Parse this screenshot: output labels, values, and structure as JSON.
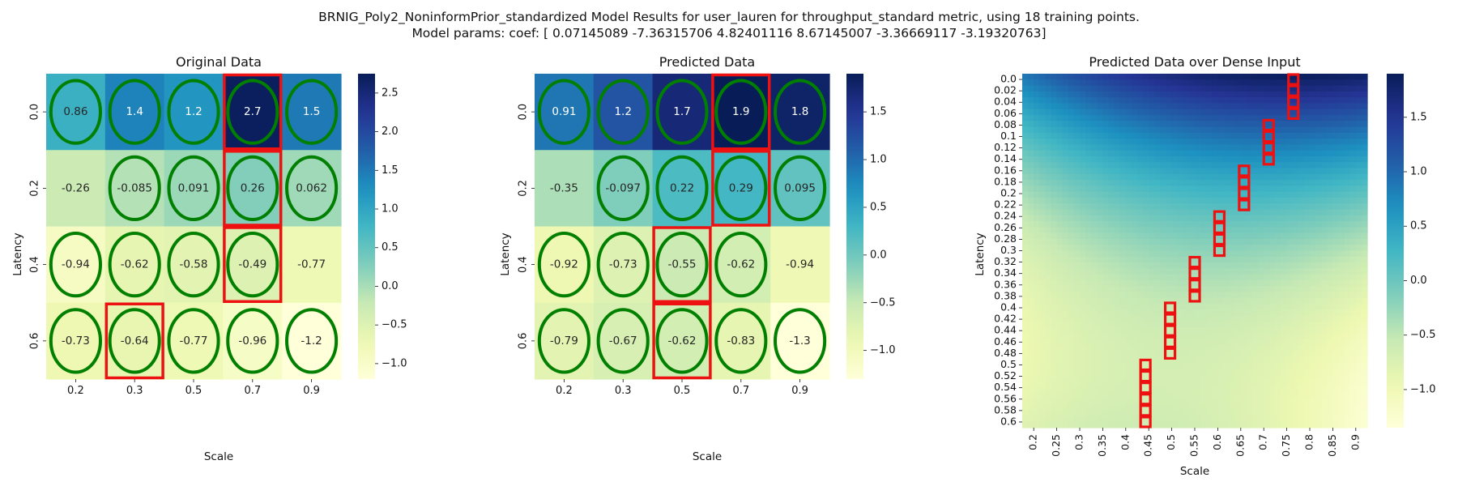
{
  "suptitle": {
    "line1": "BRNIG_Poly2_NoninformPrior_standardized Model Results for user_lauren for throughput_standard metric, using 18 training points.",
    "line2": "Model params: coef: [ 0.07145089 -7.36315706  4.82401116  8.67145007 -3.36669117 -3.19320763]"
  },
  "colors": {
    "colormap": "YlGnBu",
    "green_ellipse": "#007f00",
    "red_box": "#ee1111"
  },
  "chart_data": [
    {
      "type": "heatmap",
      "title": "Original Data",
      "xlabel": "Scale",
      "ylabel": "Latency",
      "x_labels": [
        "0.2",
        "0.3",
        "0.5",
        "0.7",
        "0.9"
      ],
      "y_labels": [
        "0.0",
        "0.2",
        "0.4",
        "0.6"
      ],
      "values": [
        [
          0.86,
          1.4,
          1.2,
          2.7,
          1.5
        ],
        [
          -0.26,
          -0.085,
          0.091,
          0.26,
          0.062
        ],
        [
          -0.94,
          -0.62,
          -0.58,
          -0.49,
          -0.77
        ],
        [
          -0.73,
          -0.64,
          -0.77,
          -0.96,
          -1.2
        ]
      ],
      "value_labels": [
        [
          "0.86",
          "1.4",
          "1.2",
          "2.7",
          "1.5"
        ],
        [
          "-0.26",
          "-0.085",
          "0.091",
          "0.26",
          "0.062"
        ],
        [
          "-0.94",
          "-0.62",
          "-0.58",
          "-0.49",
          "-0.77"
        ],
        [
          "-0.73",
          "-0.64",
          "-0.77",
          "-0.96",
          "-1.2"
        ]
      ],
      "vmin": -1.2,
      "vmax": 2.75,
      "colorbar_ticks": [
        -1.0,
        -0.5,
        0.0,
        0.5,
        1.0,
        1.5,
        2.0,
        2.5
      ],
      "colorbar_tick_labels": [
        "−1.0",
        "−0.5",
        "0.0",
        "0.5",
        "1.0",
        "1.5",
        "2.0",
        "2.5"
      ],
      "green_ellipses": [
        [
          0,
          0
        ],
        [
          0,
          1
        ],
        [
          0,
          2
        ],
        [
          0,
          3
        ],
        [
          0,
          4
        ],
        [
          1,
          1
        ],
        [
          1,
          2
        ],
        [
          1,
          3
        ],
        [
          1,
          4
        ],
        [
          2,
          0
        ],
        [
          2,
          1
        ],
        [
          2,
          2
        ],
        [
          2,
          3
        ],
        [
          3,
          0
        ],
        [
          3,
          1
        ],
        [
          3,
          2
        ],
        [
          3,
          3
        ],
        [
          3,
          4
        ]
      ],
      "red_boxes": [
        [
          0,
          3
        ],
        [
          1,
          3
        ],
        [
          2,
          3
        ],
        [
          3,
          1
        ]
      ]
    },
    {
      "type": "heatmap",
      "title": "Predicted Data",
      "xlabel": "Scale",
      "ylabel": "Latency",
      "x_labels": [
        "0.2",
        "0.3",
        "0.5",
        "0.7",
        "0.9"
      ],
      "y_labels": [
        "0.0",
        "0.2",
        "0.4",
        "0.6"
      ],
      "values": [
        [
          0.91,
          1.2,
          1.7,
          1.9,
          1.8
        ],
        [
          -0.35,
          -0.097,
          0.22,
          0.29,
          0.095
        ],
        [
          -0.92,
          -0.73,
          -0.55,
          -0.62,
          -0.94
        ],
        [
          -0.79,
          -0.67,
          -0.62,
          -0.83,
          -1.3
        ]
      ],
      "value_labels": [
        [
          "0.91",
          "1.2",
          "1.7",
          "1.9",
          "1.8"
        ],
        [
          "-0.35",
          "-0.097",
          "0.22",
          "0.29",
          "0.095"
        ],
        [
          "-0.92",
          "-0.73",
          "-0.55",
          "-0.62",
          "-0.94"
        ],
        [
          "-0.79",
          "-0.67",
          "-0.62",
          "-0.83",
          "-1.3"
        ]
      ],
      "vmin": -1.3,
      "vmax": 1.9,
      "colorbar_ticks": [
        -1.0,
        -0.5,
        0.0,
        0.5,
        1.0,
        1.5
      ],
      "colorbar_tick_labels": [
        "−1.0",
        "−0.5",
        "0.0",
        "0.5",
        "1.0",
        "1.5"
      ],
      "green_ellipses": [
        [
          0,
          0
        ],
        [
          0,
          1
        ],
        [
          0,
          2
        ],
        [
          0,
          3
        ],
        [
          0,
          4
        ],
        [
          1,
          1
        ],
        [
          1,
          2
        ],
        [
          1,
          3
        ],
        [
          1,
          4
        ],
        [
          2,
          0
        ],
        [
          2,
          1
        ],
        [
          2,
          2
        ],
        [
          2,
          3
        ],
        [
          3,
          0
        ],
        [
          3,
          1
        ],
        [
          3,
          2
        ],
        [
          3,
          3
        ],
        [
          3,
          4
        ]
      ],
      "red_boxes": [
        [
          0,
          3
        ],
        [
          1,
          3
        ],
        [
          2,
          2
        ],
        [
          3,
          2
        ]
      ]
    },
    {
      "type": "heatmap",
      "title": "Predicted Data over Dense Input",
      "xlabel": "Scale",
      "ylabel": "Latency",
      "x_labels": [
        "0.2",
        "0.25",
        "0.3",
        "0.35",
        "0.4",
        "0.45",
        "0.5",
        "0.55",
        "0.6",
        "0.65",
        "0.7",
        "0.75",
        "0.8",
        "0.85",
        "0.9"
      ],
      "y_labels": [
        "0.0",
        "0.02",
        "0.04",
        "0.06",
        "0.08",
        "0.1",
        "0.12",
        "0.14",
        "0.16",
        "0.18",
        "0.2",
        "0.22",
        "0.24",
        "0.26",
        "0.28",
        "0.3",
        "0.32",
        "0.34",
        "0.36",
        "0.38",
        "0.4",
        "0.42",
        "0.44",
        "0.46",
        "0.48",
        "0.5",
        "0.52",
        "0.54",
        "0.56",
        "0.58",
        "0.6"
      ],
      "model_coef": [
        0.07145089,
        -7.36315706,
        4.82401116,
        8.67145007,
        -3.36669117,
        -3.19320763
      ],
      "vmin": -1.35,
      "vmax": 1.9,
      "colorbar_ticks": [
        -1.0,
        -0.5,
        0.0,
        0.5,
        1.0,
        1.5
      ],
      "colorbar_tick_labels": [
        "−1.0",
        "−0.5",
        "0.0",
        "0.5",
        "1.0",
        "1.5"
      ],
      "red_path_scale_by_latency_row": [
        0.75,
        0.75,
        0.75,
        0.75,
        0.7,
        0.7,
        0.7,
        0.7,
        0.65,
        0.65,
        0.65,
        0.65,
        0.6,
        0.6,
        0.6,
        0.6,
        0.55,
        0.55,
        0.55,
        0.55,
        0.5,
        0.5,
        0.5,
        0.5,
        0.5,
        0.45,
        0.45,
        0.45,
        0.45,
        0.45,
        0.45
      ]
    }
  ]
}
